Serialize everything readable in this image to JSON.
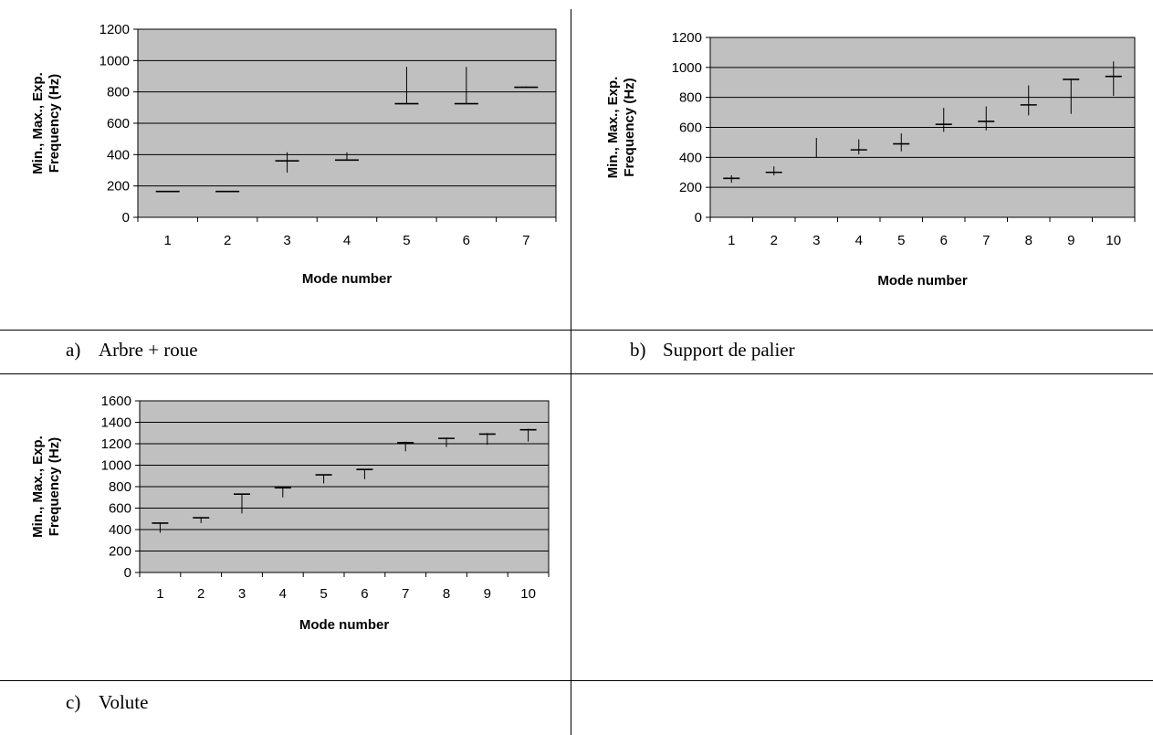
{
  "captions": {
    "a": {
      "num": "a)",
      "text": "Arbre + roue"
    },
    "b": {
      "num": "b)",
      "text": "Support de palier"
    },
    "c": {
      "num": "c)",
      "text": "Volute"
    }
  },
  "colors": {
    "plot_bg": "#c0c0c0",
    "grid": "#000000",
    "marks": "#000000"
  },
  "chart_data": [
    {
      "type": "errorbar",
      "ylabel": [
        "Min., Max., Exp.",
        "Frequency (Hz)"
      ],
      "xlabel": "Mode number",
      "ylim": [
        0,
        1200
      ],
      "yticks": [
        0,
        200,
        400,
        600,
        800,
        1000,
        1200
      ],
      "grid": true,
      "categories": [
        "1",
        "2",
        "3",
        "4",
        "5",
        "6",
        "7"
      ],
      "min": [
        165,
        165,
        285,
        365,
        725,
        725,
        825
      ],
      "max": [
        165,
        165,
        415,
        415,
        960,
        960,
        835
      ],
      "exp": [
        165,
        165,
        360,
        365,
        725,
        725,
        830
      ]
    },
    {
      "type": "errorbar",
      "ylabel": [
        "Min., Max., Exp.",
        "Frequency (Hz)"
      ],
      "xlabel": "Mode number",
      "ylim": [
        0,
        1200
      ],
      "yticks": [
        0,
        200,
        400,
        600,
        800,
        1000,
        1200
      ],
      "grid": true,
      "categories": [
        "1",
        "2",
        "3",
        "4",
        "5",
        "6",
        "7",
        "8",
        "9",
        "10"
      ],
      "min": [
        230,
        280,
        400,
        420,
        440,
        570,
        580,
        680,
        690,
        810
      ],
      "max": [
        280,
        340,
        530,
        520,
        560,
        730,
        740,
        880,
        920,
        1040
      ],
      "exp": [
        260,
        300,
        null,
        450,
        490,
        620,
        640,
        750,
        920,
        940
      ]
    },
    {
      "type": "errorbar",
      "ylabel": [
        "Min., Max., Exp.",
        "Frequency (Hz)"
      ],
      "xlabel": "Mode number",
      "ylim": [
        0,
        1600
      ],
      "yticks": [
        0,
        200,
        400,
        600,
        800,
        1000,
        1200,
        1400,
        1600
      ],
      "grid": true,
      "categories": [
        "1",
        "2",
        "3",
        "4",
        "5",
        "6",
        "7",
        "8",
        "9",
        "10"
      ],
      "min": [
        370,
        460,
        550,
        700,
        830,
        870,
        1130,
        1170,
        1190,
        1220
      ],
      "max": [
        460,
        510,
        730,
        790,
        910,
        960,
        1220,
        1260,
        1300,
        1340
      ],
      "exp": [
        460,
        510,
        730,
        790,
        910,
        960,
        1210,
        1250,
        1290,
        1330
      ]
    }
  ]
}
